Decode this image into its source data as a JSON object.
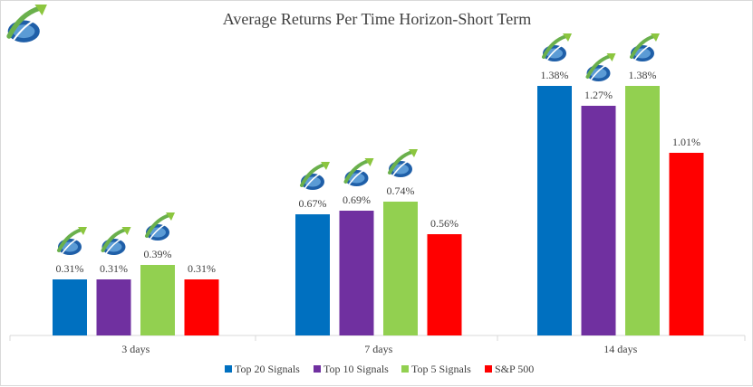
{
  "chart_data": {
    "type": "bar",
    "title": "Average Returns Per Time Horizon-Short Term",
    "xlabel": "",
    "ylabel": "",
    "categories": [
      "3 days",
      "7 days",
      "14 days"
    ],
    "series": [
      {
        "name": "Top 20 Signals",
        "color": "#0070c0",
        "values": [
          0.31,
          0.67,
          1.38
        ],
        "labels": [
          "0.31%",
          "0.67%",
          "1.38%"
        ]
      },
      {
        "name": "Top 10 Signals",
        "color": "#7030a0",
        "values": [
          0.31,
          0.69,
          1.27
        ],
        "labels": [
          "0.31%",
          "0.69%",
          "1.27%"
        ]
      },
      {
        "name": "Top 5 Signals",
        "color": "#92d050",
        "values": [
          0.39,
          0.74,
          1.38
        ],
        "labels": [
          "0.39%",
          "0.74%",
          "1.38%"
        ]
      },
      {
        "name": "S&P 500",
        "color": "#ff0000",
        "values": [
          0.31,
          0.56,
          1.01
        ],
        "labels": [
          "0.31%",
          "0.56%",
          "1.01%"
        ]
      }
    ],
    "ylim": [
      0,
      1.6
    ],
    "grid": false,
    "legend": "bottom",
    "logo_icon": "rising-arrow-swoosh-logo-icon",
    "logo_on_series": [
      "Top 20 Signals",
      "Top 10 Signals",
      "Top 5 Signals"
    ]
  }
}
